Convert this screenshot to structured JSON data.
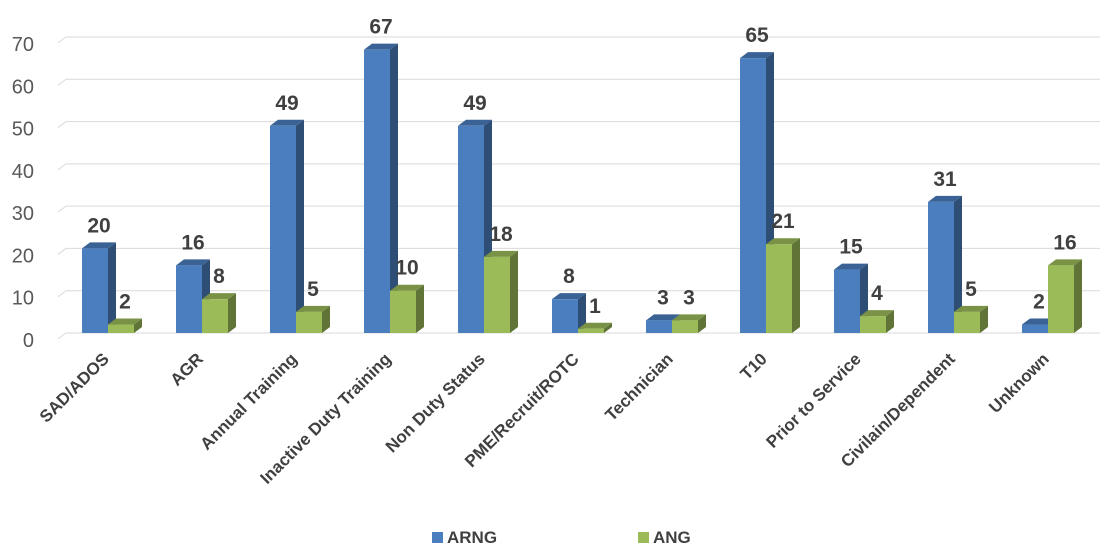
{
  "chart_data": {
    "type": "bar",
    "title": "",
    "xlabel": "",
    "ylabel": "",
    "ylim": [
      0,
      70
    ],
    "yticks": [
      0,
      10,
      20,
      30,
      40,
      50,
      60,
      70
    ],
    "grid": true,
    "legend_position": "bottom",
    "categories": [
      "SAD/ADOS",
      "AGR",
      "Annual Training",
      "Inactive Duty Training",
      "Non Duty Status",
      "PME/Recruit/ROTC",
      "Technician",
      "T10",
      "Prior to Service",
      "Civilain/Dependent",
      "Unknown"
    ],
    "series": [
      {
        "name": "ARNG",
        "color": "#4a7ebf",
        "values": [
          20,
          16,
          49,
          67,
          49,
          8,
          3,
          65,
          15,
          31,
          2
        ]
      },
      {
        "name": "ANG",
        "color": "#9bbb59",
        "values": [
          2,
          8,
          5,
          10,
          18,
          1,
          3,
          21,
          4,
          5,
          16
        ]
      }
    ]
  }
}
